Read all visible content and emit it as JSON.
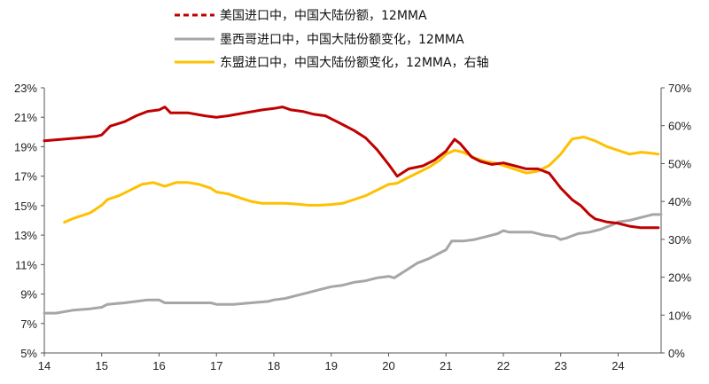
{
  "chart_data": {
    "type": "line",
    "title": "",
    "xlabel": "",
    "ylabel": "",
    "legend_position": "top-center",
    "grid": false,
    "x_tick_labels": [
      "14",
      "15",
      "16",
      "17",
      "18",
      "19",
      "20",
      "21",
      "22",
      "23",
      "24"
    ],
    "x_range": [
      2014.0,
      2024.75
    ],
    "left_axis": {
      "range": [
        5,
        23
      ],
      "tick_labels": [
        "5%",
        "7%",
        "9%",
        "11%",
        "13%",
        "15%",
        "17%",
        "19%",
        "21%",
        "23%"
      ]
    },
    "right_axis": {
      "range": [
        0,
        70
      ],
      "tick_labels": [
        "0%",
        "10%",
        "20%",
        "30%",
        "40%",
        "50%",
        "60%",
        "70%"
      ]
    },
    "series": [
      {
        "name": "美国进口中，中国大陆份额，12MMA",
        "color": "#C00000",
        "line_style": "solid",
        "legend_style": "dashed",
        "axis": "left",
        "points": [
          [
            2014.0,
            19.4
          ],
          [
            2014.3,
            19.5
          ],
          [
            2014.6,
            19.6
          ],
          [
            2014.9,
            19.7
          ],
          [
            2015.0,
            19.8
          ],
          [
            2015.15,
            20.4
          ],
          [
            2015.4,
            20.7
          ],
          [
            2015.6,
            21.1
          ],
          [
            2015.8,
            21.4
          ],
          [
            2016.0,
            21.5
          ],
          [
            2016.1,
            21.7
          ],
          [
            2016.2,
            21.3
          ],
          [
            2016.5,
            21.3
          ],
          [
            2016.8,
            21.1
          ],
          [
            2017.0,
            21.0
          ],
          [
            2017.2,
            21.1
          ],
          [
            2017.5,
            21.3
          ],
          [
            2017.8,
            21.5
          ],
          [
            2018.0,
            21.6
          ],
          [
            2018.15,
            21.7
          ],
          [
            2018.3,
            21.5
          ],
          [
            2018.5,
            21.4
          ],
          [
            2018.7,
            21.2
          ],
          [
            2018.9,
            21.1
          ],
          [
            2019.0,
            20.9
          ],
          [
            2019.2,
            20.5
          ],
          [
            2019.4,
            20.1
          ],
          [
            2019.6,
            19.6
          ],
          [
            2019.8,
            18.8
          ],
          [
            2020.0,
            17.8
          ],
          [
            2020.15,
            17.0
          ],
          [
            2020.35,
            17.5
          ],
          [
            2020.6,
            17.7
          ],
          [
            2020.8,
            18.1
          ],
          [
            2021.0,
            18.7
          ],
          [
            2021.15,
            19.5
          ],
          [
            2021.25,
            19.2
          ],
          [
            2021.45,
            18.3
          ],
          [
            2021.6,
            18.0
          ],
          [
            2021.8,
            17.8
          ],
          [
            2022.0,
            17.9
          ],
          [
            2022.2,
            17.7
          ],
          [
            2022.4,
            17.5
          ],
          [
            2022.6,
            17.5
          ],
          [
            2022.8,
            17.2
          ],
          [
            2023.0,
            16.2
          ],
          [
            2023.2,
            15.4
          ],
          [
            2023.35,
            15.0
          ],
          [
            2023.5,
            14.4
          ],
          [
            2023.6,
            14.1
          ],
          [
            2023.8,
            13.9
          ],
          [
            2024.0,
            13.8
          ],
          [
            2024.2,
            13.6
          ],
          [
            2024.4,
            13.5
          ],
          [
            2024.55,
            13.5
          ],
          [
            2024.7,
            13.5
          ]
        ]
      },
      {
        "name": "墨西哥进口中，中国大陆份额变化，12MMA",
        "color": "#A6A6A6",
        "line_style": "solid",
        "legend_style": "solid",
        "axis": "left",
        "points": [
          [
            2014.0,
            7.7
          ],
          [
            2014.2,
            7.7
          ],
          [
            2014.5,
            7.9
          ],
          [
            2014.8,
            8.0
          ],
          [
            2015.0,
            8.1
          ],
          [
            2015.1,
            8.3
          ],
          [
            2015.4,
            8.4
          ],
          [
            2015.6,
            8.5
          ],
          [
            2015.8,
            8.6
          ],
          [
            2016.0,
            8.6
          ],
          [
            2016.1,
            8.4
          ],
          [
            2016.3,
            8.4
          ],
          [
            2016.6,
            8.4
          ],
          [
            2016.9,
            8.4
          ],
          [
            2017.0,
            8.3
          ],
          [
            2017.3,
            8.3
          ],
          [
            2017.6,
            8.4
          ],
          [
            2017.9,
            8.5
          ],
          [
            2018.0,
            8.6
          ],
          [
            2018.2,
            8.7
          ],
          [
            2018.4,
            8.9
          ],
          [
            2018.6,
            9.1
          ],
          [
            2018.8,
            9.3
          ],
          [
            2019.0,
            9.5
          ],
          [
            2019.2,
            9.6
          ],
          [
            2019.4,
            9.8
          ],
          [
            2019.6,
            9.9
          ],
          [
            2019.8,
            10.1
          ],
          [
            2020.0,
            10.2
          ],
          [
            2020.1,
            10.1
          ],
          [
            2020.3,
            10.6
          ],
          [
            2020.5,
            11.1
          ],
          [
            2020.7,
            11.4
          ],
          [
            2020.9,
            11.8
          ],
          [
            2021.0,
            12.0
          ],
          [
            2021.1,
            12.6
          ],
          [
            2021.3,
            12.6
          ],
          [
            2021.5,
            12.7
          ],
          [
            2021.7,
            12.9
          ],
          [
            2021.9,
            13.1
          ],
          [
            2022.0,
            13.3
          ],
          [
            2022.1,
            13.2
          ],
          [
            2022.3,
            13.2
          ],
          [
            2022.5,
            13.2
          ],
          [
            2022.7,
            13.0
          ],
          [
            2022.9,
            12.9
          ],
          [
            2023.0,
            12.7
          ],
          [
            2023.1,
            12.8
          ],
          [
            2023.3,
            13.1
          ],
          [
            2023.5,
            13.2
          ],
          [
            2023.7,
            13.4
          ],
          [
            2023.9,
            13.7
          ],
          [
            2024.0,
            13.9
          ],
          [
            2024.2,
            14.0
          ],
          [
            2024.4,
            14.2
          ],
          [
            2024.6,
            14.4
          ],
          [
            2024.75,
            14.4
          ]
        ]
      },
      {
        "name": "东盟进口中，中国大陆份额变化，12MMA，右轴",
        "color": "#FFC000",
        "line_style": "solid",
        "legend_style": "solid",
        "axis": "right",
        "points": [
          [
            2014.35,
            34.5
          ],
          [
            2014.5,
            35.5
          ],
          [
            2014.8,
            37.0
          ],
          [
            2015.0,
            39.0
          ],
          [
            2015.1,
            40.5
          ],
          [
            2015.3,
            41.5
          ],
          [
            2015.5,
            43.0
          ],
          [
            2015.7,
            44.5
          ],
          [
            2015.9,
            45.0
          ],
          [
            2016.0,
            44.5
          ],
          [
            2016.1,
            44.0
          ],
          [
            2016.3,
            45.0
          ],
          [
            2016.5,
            45.0
          ],
          [
            2016.7,
            44.5
          ],
          [
            2016.9,
            43.5
          ],
          [
            2017.0,
            42.5
          ],
          [
            2017.2,
            42.0
          ],
          [
            2017.4,
            41.0
          ],
          [
            2017.6,
            40.0
          ],
          [
            2017.8,
            39.5
          ],
          [
            2018.0,
            39.5
          ],
          [
            2018.2,
            39.5
          ],
          [
            2018.4,
            39.3
          ],
          [
            2018.6,
            39.0
          ],
          [
            2018.8,
            39.0
          ],
          [
            2019.0,
            39.2
          ],
          [
            2019.2,
            39.5
          ],
          [
            2019.4,
            40.5
          ],
          [
            2019.6,
            41.5
          ],
          [
            2019.8,
            43.0
          ],
          [
            2020.0,
            44.5
          ],
          [
            2020.15,
            44.8
          ],
          [
            2020.3,
            46.0
          ],
          [
            2020.5,
            47.5
          ],
          [
            2020.7,
            49.0
          ],
          [
            2020.9,
            51.0
          ],
          [
            2021.0,
            52.5
          ],
          [
            2021.15,
            53.5
          ],
          [
            2021.3,
            53.0
          ],
          [
            2021.5,
            51.5
          ],
          [
            2021.7,
            50.5
          ],
          [
            2021.9,
            50.0
          ],
          [
            2022.0,
            49.5
          ],
          [
            2022.2,
            48.5
          ],
          [
            2022.4,
            47.5
          ],
          [
            2022.6,
            48.0
          ],
          [
            2022.8,
            49.5
          ],
          [
            2023.0,
            52.5
          ],
          [
            2023.1,
            54.5
          ],
          [
            2023.2,
            56.5
          ],
          [
            2023.4,
            57.0
          ],
          [
            2023.6,
            56.0
          ],
          [
            2023.8,
            54.5
          ],
          [
            2024.0,
            53.5
          ],
          [
            2024.2,
            52.5
          ],
          [
            2024.4,
            53.0
          ],
          [
            2024.55,
            52.8
          ],
          [
            2024.7,
            52.5
          ]
        ]
      }
    ]
  }
}
